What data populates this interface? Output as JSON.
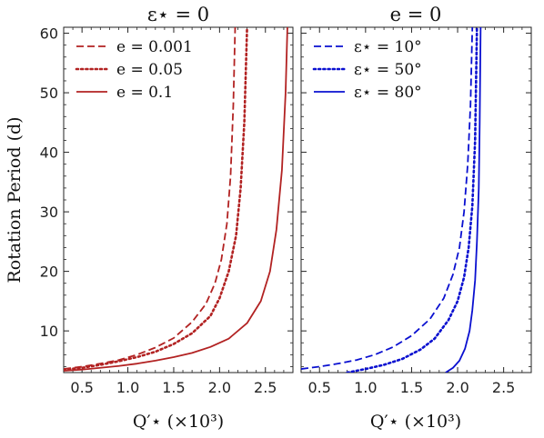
{
  "chart_data": [
    {
      "type": "line",
      "title": "ε⋆ = 0",
      "xlabel": "Q′⋆ (×10³)",
      "ylabel": "Rotation Period (d)",
      "xlim": [
        0.3,
        2.8
      ],
      "ylim": [
        3,
        61
      ],
      "xticks": [
        "0.5",
        "1.0",
        "1.5",
        "2.0",
        "2.5"
      ],
      "yticks": [
        "10",
        "20",
        "30",
        "40",
        "50",
        "60"
      ],
      "legend_position": "top-left",
      "series": [
        {
          "name": "e = 0.001",
          "color": "#b22222",
          "style": "dashed",
          "x": [
            0.3,
            0.5,
            0.7,
            0.9,
            1.1,
            1.3,
            1.5,
            1.7,
            1.85,
            1.95,
            2.02,
            2.08,
            2.12,
            2.15,
            2.17
          ],
          "y": [
            3.6,
            4.0,
            4.5,
            5.1,
            6.0,
            7.2,
            8.8,
            11.5,
            14.5,
            18.0,
            22.0,
            28.0,
            36.0,
            48.0,
            61.0
          ]
        },
        {
          "name": "e = 0.05",
          "color": "#b22222",
          "style": "dotted",
          "x": [
            0.3,
            0.5,
            0.7,
            0.9,
            1.1,
            1.3,
            1.5,
            1.7,
            1.9,
            2.0,
            2.1,
            2.18,
            2.23,
            2.27,
            2.3
          ],
          "y": [
            3.5,
            3.8,
            4.3,
            4.9,
            5.6,
            6.5,
            7.8,
            9.6,
            12.5,
            15.5,
            20.0,
            26.0,
            34.0,
            45.0,
            61.0
          ]
        },
        {
          "name": "e = 0.1",
          "color": "#b22222",
          "style": "solid",
          "x": [
            0.3,
            0.5,
            0.7,
            0.9,
            1.1,
            1.3,
            1.5,
            1.7,
            1.9,
            2.1,
            2.3,
            2.45,
            2.55,
            2.62,
            2.68,
            2.72,
            2.74
          ],
          "y": [
            3.3,
            3.5,
            3.8,
            4.1,
            4.5,
            5.0,
            5.6,
            6.3,
            7.3,
            8.7,
            11.3,
            15.0,
            20.0,
            27.0,
            37.0,
            50.0,
            61.0
          ]
        }
      ]
    },
    {
      "type": "line",
      "title": "e = 0",
      "xlabel": "Q′⋆ (×10³)",
      "ylabel": "",
      "xlim": [
        0.3,
        2.8
      ],
      "ylim": [
        3,
        61
      ],
      "xticks": [
        "0.5",
        "1.0",
        "1.5",
        "2.0",
        "2.5"
      ],
      "legend_position": "top-left",
      "series": [
        {
          "name": "ε⋆ = 10°",
          "color": "#0a10d0",
          "style": "dashed",
          "x": [
            0.3,
            0.5,
            0.7,
            0.9,
            1.1,
            1.3,
            1.5,
            1.7,
            1.85,
            1.95,
            2.02,
            2.07,
            2.11,
            2.14,
            2.16
          ],
          "y": [
            3.6,
            4.0,
            4.5,
            5.1,
            6.0,
            7.3,
            9.2,
            12.0,
            15.5,
            19.5,
            24.0,
            30.0,
            38.0,
            48.0,
            61.0
          ]
        },
        {
          "name": "ε⋆ = 50°",
          "color": "#0a10d0",
          "style": "dotted",
          "x": [
            0.8,
            1.0,
            1.2,
            1.4,
            1.6,
            1.75,
            1.9,
            2.0,
            2.07,
            2.12,
            2.16,
            2.19,
            2.21
          ],
          "y": [
            3.0,
            3.6,
            4.3,
            5.3,
            6.9,
            8.7,
            11.8,
            15.0,
            19.0,
            24.0,
            31.0,
            42.0,
            61.0
          ]
        },
        {
          "name": "ε⋆ = 80°",
          "color": "#0a10d0",
          "style": "solid",
          "x": [
            1.87,
            1.95,
            2.02,
            2.08,
            2.13,
            2.16,
            2.19,
            2.21,
            2.23,
            2.24,
            2.25
          ],
          "y": [
            3.0,
            3.8,
            5.0,
            7.0,
            10.0,
            13.5,
            18.5,
            25.0,
            34.0,
            45.0,
            61.0
          ]
        }
      ]
    }
  ]
}
